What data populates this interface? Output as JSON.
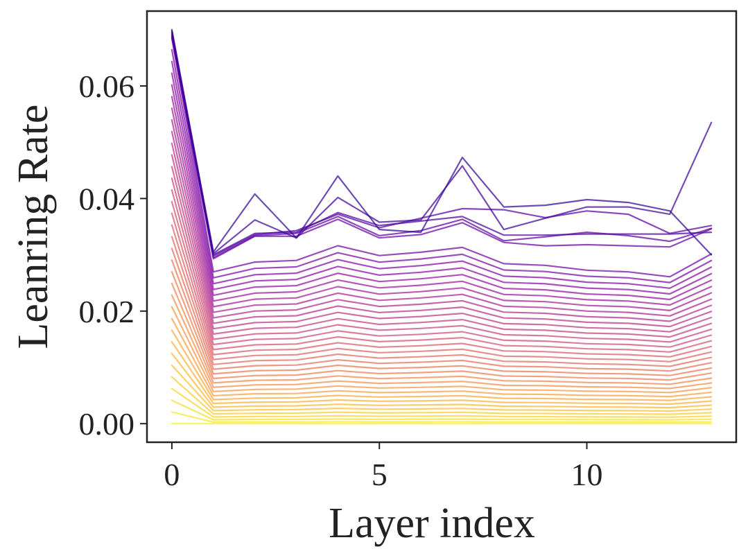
{
  "chart_data": {
    "type": "line",
    "title": "",
    "xlabel": "Layer index",
    "ylabel": "Leanring Rate",
    "xlim": [
      -0.6,
      13.6
    ],
    "ylim": [
      -0.0033,
      0.0733
    ],
    "xticks": [
      0,
      5,
      10
    ],
    "xtick_labels": [
      "0",
      "5",
      "10"
    ],
    "yticks": [
      0.0,
      0.02,
      0.04,
      0.06
    ],
    "ytick_labels": [
      "0.00",
      "0.02",
      "0.04",
      "0.06"
    ],
    "grid": false,
    "legend": "none",
    "colormap": "plasma",
    "x": [
      0,
      1,
      2,
      3,
      4,
      5,
      6,
      7,
      8,
      9,
      10,
      11,
      12,
      13
    ],
    "series_count": 40,
    "profile": [
      1.0,
      0.93,
      0.99,
      1.0,
      1.09,
      1.03,
      1.05,
      1.08,
      0.98,
      0.97,
      0.94,
      0.93,
      0.9,
      1.04
    ],
    "series": [
      {
        "values": [
          0.07,
          0.0305,
          0.0408,
          0.033,
          0.044,
          0.0345,
          0.034,
          0.0473,
          0.0385,
          0.0388,
          0.0398,
          0.0393,
          0.0378,
          0.03
        ]
      },
      {
        "values": [
          0.0698,
          0.0302,
          0.0362,
          0.033,
          0.0402,
          0.0358,
          0.0362,
          0.0458,
          0.0345,
          0.0365,
          0.0385,
          0.0385,
          0.0372,
          0.0535
        ]
      },
      {
        "values": [
          0.0695,
          0.03,
          0.0338,
          0.034,
          0.0375,
          0.0352,
          0.036,
          0.0368,
          0.0335,
          0.0335,
          0.0337,
          0.0337,
          0.0337,
          0.034
        ]
      },
      {
        "values": [
          0.0692,
          0.0298,
          0.0336,
          0.0343,
          0.0372,
          0.0348,
          0.0365,
          0.0382,
          0.038,
          0.0366,
          0.0378,
          0.0372,
          0.0338,
          0.0352
        ]
      },
      {
        "values": [
          0.069,
          0.0295,
          0.0334,
          0.0338,
          0.0368,
          0.0334,
          0.0343,
          0.0363,
          0.0325,
          0.0332,
          0.034,
          0.0334,
          0.0324,
          0.0347
        ]
      },
      {
        "values": [
          0.0687,
          0.0293,
          0.0333,
          0.0333,
          0.0363,
          0.033,
          0.0336,
          0.0357,
          0.0322,
          0.0316,
          0.0318,
          0.0316,
          0.0314,
          0.0346
        ]
      }
    ]
  }
}
